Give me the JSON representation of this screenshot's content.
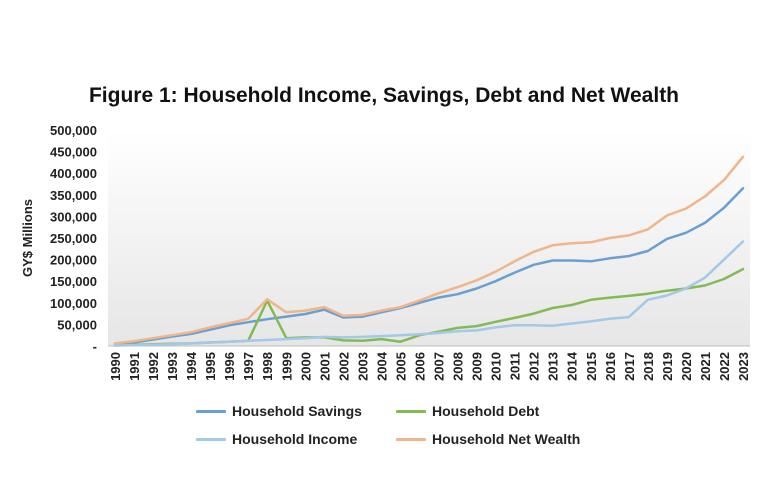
{
  "chart_data": {
    "type": "line",
    "title": "Figure 1: Household Income, Savings, Debt and Net Wealth",
    "ylabel": "GY$ Millions",
    "xlabel": "",
    "ylim": [
      0,
      500000
    ],
    "yticks": [
      "-",
      "50,000",
      "100,000",
      "150,000",
      "200,000",
      "250,000",
      "300,000",
      "350,000",
      "400,000",
      "450,000",
      "500,000"
    ],
    "x": [
      "1990",
      "1991",
      "1992",
      "1993",
      "1994",
      "1995",
      "1996",
      "1997",
      "1998",
      "1999",
      "2000",
      "2001",
      "2002",
      "2003",
      "2004",
      "2005",
      "2006",
      "2007",
      "2008",
      "2009",
      "2010",
      "2011",
      "2012",
      "2013",
      "2014",
      "2015",
      "2016",
      "2017",
      "2018",
      "2019",
      "2020",
      "2021",
      "2022",
      "2023"
    ],
    "grid": false,
    "legend_position": "bottom",
    "series": [
      {
        "name": "Household Savings",
        "color": "#6a9fd1",
        "values": [
          4000,
          8000,
          15000,
          22000,
          28000,
          38000,
          48000,
          55000,
          62000,
          68000,
          74000,
          84000,
          66000,
          68000,
          78000,
          88000,
          100000,
          112000,
          120000,
          133000,
          150000,
          170000,
          188000,
          198000,
          198000,
          196000,
          203000,
          208000,
          220000,
          248000,
          262000,
          285000,
          320000,
          365000
        ]
      },
      {
        "name": "Household Debt",
        "color": "#82bb54",
        "values": [
          2000,
          3000,
          4000,
          5000,
          6000,
          8000,
          10000,
          12000,
          105000,
          18000,
          20000,
          20000,
          13000,
          12000,
          16000,
          10000,
          25000,
          33000,
          42000,
          46000,
          56000,
          65000,
          75000,
          88000,
          95000,
          107000,
          112000,
          116000,
          121000,
          128000,
          133000,
          140000,
          155000,
          178000
        ]
      },
      {
        "name": "Household Income",
        "color": "#a3c8e8",
        "values": [
          1000,
          2000,
          3000,
          4000,
          6000,
          8000,
          10000,
          12000,
          14000,
          16000,
          18000,
          21000,
          20000,
          21000,
          23000,
          25000,
          27000,
          30000,
          34000,
          36000,
          43000,
          48000,
          48000,
          47000,
          52000,
          57000,
          63000,
          67000,
          107000,
          117000,
          133000,
          158000,
          200000,
          242000
        ]
      },
      {
        "name": "Household Net Wealth",
        "color": "#f0b58a",
        "values": [
          6000,
          11000,
          18000,
          25000,
          32000,
          43000,
          53000,
          63000,
          108000,
          78000,
          82000,
          90000,
          70000,
          72000,
          82000,
          90000,
          105000,
          122000,
          136000,
          152000,
          172000,
          196000,
          218000,
          233000,
          238000,
          240000,
          250000,
          256000,
          270000,
          302000,
          318000,
          346000,
          384000,
          438000
        ]
      }
    ]
  }
}
